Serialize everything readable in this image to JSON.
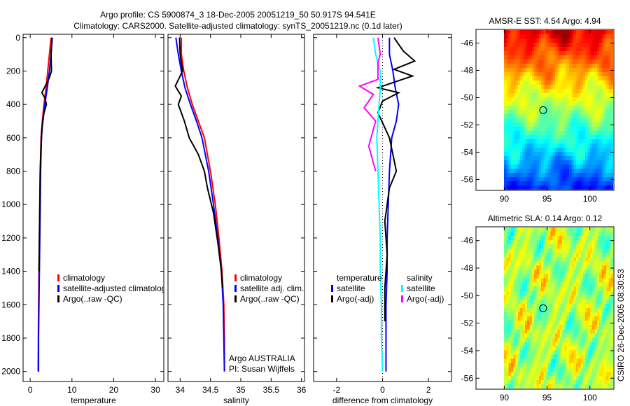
{
  "title_line1": "Argo profile: CS 5900874_3 18-Dec-2005 20051219_50 50.917S 94.541E",
  "title_line2": "Climatology: CARS2000. Satellite-adjusted climatology: synTS_20051219.nc (0.1d later)",
  "side_stamp": "CSIRO 26-Dec-2005 08:30:53",
  "colors": {
    "red": "#ff0000",
    "blue": "#0000ff",
    "black": "#000000",
    "cyan": "#00ffff",
    "magenta": "#ff00ff"
  },
  "chart_data": [
    {
      "type": "line",
      "id": "temperature",
      "xlabel": "temperature",
      "ylabel": "",
      "xlim": [
        -1.7,
        32
      ],
      "ylim": [
        2060,
        -20
      ],
      "xticks": [
        0,
        10,
        20,
        30
      ],
      "yticks": [
        0,
        200,
        400,
        600,
        800,
        1000,
        1200,
        1400,
        1600,
        1800,
        2000
      ],
      "legend": {
        "placement": "lower-middle",
        "entries": [
          "climatology",
          "satellite-adjusted climatology",
          "Argo(..raw -QC)"
        ]
      },
      "series": [
        {
          "name": "climatology",
          "color": "#ff0000",
          "x": [
            5.0,
            4.6,
            4.2,
            3.8,
            3.3,
            2.9,
            2.6,
            2.4,
            2.3,
            2.2,
            2.1,
            2.0,
            1.95,
            1.9
          ],
          "y": [
            0,
            100,
            200,
            300,
            400,
            500,
            600,
            800,
            1000,
            1200,
            1400,
            1600,
            1800,
            2000
          ]
        },
        {
          "name": "satellite-adjusted climatology",
          "color": "#0000ff",
          "x": [
            5.3,
            5.0,
            4.6,
            4.1,
            3.5,
            3.0,
            2.7,
            2.5,
            2.4,
            2.3,
            2.2,
            2.1,
            2.0,
            2.0
          ],
          "y": [
            0,
            100,
            200,
            300,
            400,
            500,
            600,
            800,
            1000,
            1200,
            1400,
            1600,
            1800,
            2000
          ]
        },
        {
          "name": "Argo(..raw -QC)",
          "color": "#000000",
          "x": [
            5.2,
            5.0,
            5.1,
            4.6,
            3.4,
            2.8,
            3.5,
            3.9,
            3.3,
            2.8,
            2.6,
            2.4,
            2.3,
            2.2,
            2.1
          ],
          "y": [
            0,
            100,
            200,
            240,
            300,
            330,
            360,
            400,
            450,
            550,
            650,
            800,
            1000,
            1200,
            1400
          ]
        }
      ]
    },
    {
      "type": "line",
      "id": "salinity",
      "xlabel": "salinity",
      "ylabel": "",
      "xlim": [
        33.8,
        36.05
      ],
      "ylim": [
        2060,
        -20
      ],
      "xticks": [
        34,
        34.5,
        35,
        35.5,
        36
      ],
      "legend": {
        "placement": "lower-middle",
        "entries": [
          "climatology",
          "satellite adj. clim.",
          "Argo(..raw -QC)"
        ]
      },
      "annotation": [
        "Argo AUSTRALIA",
        "PI: Susan Wijffels"
      ],
      "series": [
        {
          "name": "climatology",
          "color": "#ff0000",
          "x": [
            34.02,
            34.02,
            34.06,
            34.12,
            34.2,
            34.3,
            34.4,
            34.5,
            34.58,
            34.64,
            34.69,
            34.72,
            34.73,
            34.73
          ],
          "y": [
            0,
            100,
            200,
            300,
            400,
            500,
            600,
            800,
            1000,
            1200,
            1400,
            1600,
            1800,
            2000
          ]
        },
        {
          "name": "satellite adj. clim.",
          "color": "#0000ff",
          "x": [
            33.93,
            33.97,
            34.02,
            34.08,
            34.17,
            34.27,
            34.36,
            34.47,
            34.55,
            34.62,
            34.68,
            34.71,
            34.72,
            34.73
          ],
          "y": [
            0,
            100,
            200,
            300,
            400,
            500,
            600,
            800,
            1000,
            1200,
            1400,
            1600,
            1800,
            2000
          ]
        },
        {
          "name": "Argo(..raw -QC)",
          "color": "#000000",
          "x": [
            33.99,
            34.0,
            34.04,
            33.92,
            33.97,
            34.02,
            33.97,
            34.07,
            34.15,
            34.3,
            34.4,
            34.45,
            34.55,
            34.63,
            34.68,
            34.7
          ],
          "y": [
            0,
            100,
            200,
            290,
            320,
            350,
            400,
            500,
            600,
            700,
            800,
            900,
            1050,
            1250,
            1400,
            1500
          ]
        }
      ]
    },
    {
      "type": "line",
      "id": "difference",
      "xlabel": "difference from climatology",
      "ylabel": "",
      "xlim": [
        -3,
        3
      ],
      "ylim": [
        2060,
        -20
      ],
      "xticks": [
        -2,
        0,
        2
      ],
      "legend": {
        "placement": "lower-middle",
        "headers": [
          "temperature",
          "salinity"
        ],
        "entries": [
          "satellite",
          "Argo(-adj)",
          "satellite",
          "Argo(-adj)"
        ]
      },
      "series": [
        {
          "name": "temperature satellite",
          "color": "#0000ff",
          "x": [
            0.3,
            0.3,
            0.45,
            0.55,
            0.7,
            0.6,
            0.4,
            0.3,
            0.25,
            0.2,
            0.2,
            0.15,
            0.15,
            0.15
          ],
          "y": [
            0,
            100,
            200,
            300,
            400,
            500,
            600,
            800,
            1000,
            1200,
            1400,
            1600,
            1800,
            2000
          ]
        },
        {
          "name": "temperature Argo(-adj)",
          "color": "#000000",
          "x": [
            0.5,
            0.9,
            1.4,
            0.5,
            1.3,
            -0.2,
            0.7,
            0.0,
            -0.2,
            0.3,
            0.6,
            0.3,
            0.1,
            0.2,
            0.1,
            0.1
          ],
          "y": [
            0,
            80,
            140,
            190,
            230,
            300,
            330,
            380,
            450,
            600,
            800,
            900,
            1100,
            1300,
            1500,
            1700
          ]
        },
        {
          "name": "salinity satellite",
          "color": "#00ffff",
          "x": [
            -0.4,
            -0.3,
            -0.1,
            -0.1,
            -0.15,
            -0.2,
            -0.25,
            -0.2,
            -0.15,
            -0.1,
            -0.1,
            -0.05,
            -0.05,
            0.0
          ],
          "y": [
            0,
            100,
            200,
            300,
            400,
            500,
            600,
            800,
            1000,
            1200,
            1400,
            1600,
            1800,
            2000
          ]
        },
        {
          "name": "salinity Argo(-adj)",
          "color": "#ff00ff",
          "x": [
            -0.2,
            -0.1,
            -0.2,
            -0.2,
            -1.0,
            -0.4,
            -0.8,
            -0.3,
            -0.6,
            -0.4,
            -0.3
          ],
          "y": [
            0,
            100,
            150,
            250,
            290,
            340,
            420,
            500,
            650,
            750,
            800
          ]
        }
      ]
    },
    {
      "type": "heatmap",
      "id": "sst-map",
      "title": "AMSR-E SST: 4.54 Argo: 4.94",
      "xlim": [
        86.7,
        102.8
      ],
      "ylim": [
        -56.8,
        -45.0
      ],
      "xticks": [
        90,
        95,
        100
      ],
      "yticks": [
        -46,
        -48,
        -50,
        -52,
        -54,
        -56
      ],
      "marker": {
        "lon": 94.541,
        "lat": -50.917
      }
    },
    {
      "type": "heatmap",
      "id": "sla-map",
      "title": "Altimetric SLA: 0.14 Argo: 0.12",
      "xlim": [
        86.7,
        102.8
      ],
      "ylim": [
        -56.8,
        -45.0
      ],
      "xticks": [
        90,
        95,
        100
      ],
      "yticks": [
        -46,
        -48,
        -50,
        -52,
        -54,
        -56
      ],
      "marker": {
        "lon": 94.541,
        "lat": -50.917
      }
    }
  ]
}
